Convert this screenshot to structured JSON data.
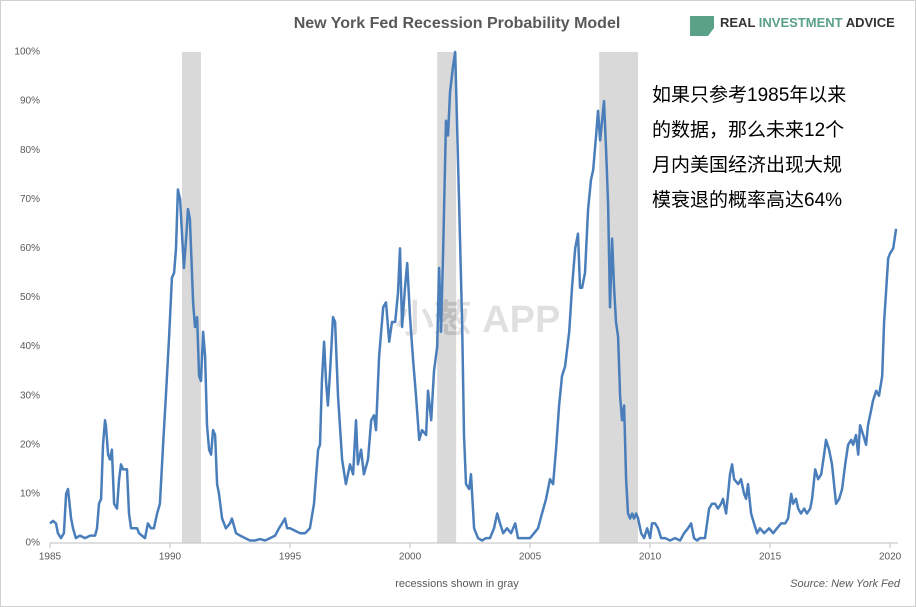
{
  "chart_data": {
    "type": "line",
    "title": "New York Fed Recession Probability Model",
    "logo": [
      "REAL",
      "INVESTMENT",
      "ADVICE"
    ],
    "annotation": [
      "如果只参考1985年以来",
      "的数据，那么未来12个",
      "月内美国经济出现大规",
      "模衰退的概率高达64%"
    ],
    "watermark": "小葱 APP",
    "xlabel": "recessions shown in gray",
    "source": "Source: New York Fed",
    "xlim": [
      1985,
      2020.33
    ],
    "xticks": [
      1985,
      1990,
      1995,
      2000,
      2005,
      2010,
      2015,
      2020
    ],
    "ylim": [
      0,
      100
    ],
    "yticks": [
      {
        "value": 0,
        "label": "0%"
      },
      {
        "value": 10,
        "label": "10%"
      },
      {
        "value": 20,
        "label": "20%"
      },
      {
        "value": 30,
        "label": "30%"
      },
      {
        "value": 40,
        "label": "40%"
      },
      {
        "value": 50,
        "label": "50%"
      },
      {
        "value": 60,
        "label": "60%"
      },
      {
        "value": 70,
        "label": "70%"
      },
      {
        "value": 80,
        "label": "80%"
      },
      {
        "value": 90,
        "label": "90%"
      },
      {
        "value": 100,
        "label": "100%"
      }
    ],
    "grid": false,
    "recession_color": "#d9d9d9",
    "recessions": [
      {
        "start": 1990.5,
        "end": 1991.29
      },
      {
        "start": 2001.13,
        "end": 2001.92
      },
      {
        "start": 2007.88,
        "end": 2009.5
      }
    ],
    "x": [
      1985.0,
      1985.13,
      1985.25,
      1985.33,
      1985.46,
      1985.58,
      1985.67,
      1985.75,
      1985.88,
      1985.96,
      1986.08,
      1986.25,
      1986.46,
      1986.67,
      1986.88,
      1986.96,
      1987.04,
      1987.13,
      1987.21,
      1987.29,
      1987.33,
      1987.42,
      1987.5,
      1987.58,
      1987.67,
      1987.79,
      1987.88,
      1987.96,
      1988.04,
      1988.21,
      1988.29,
      1988.38,
      1988.5,
      1988.63,
      1988.71,
      1988.83,
      1988.96,
      1989.08,
      1989.21,
      1989.33,
      1989.46,
      1989.58,
      1989.71,
      1989.83,
      1989.96,
      1990.08,
      1990.17,
      1990.25,
      1990.33,
      1990.42,
      1990.5,
      1990.58,
      1990.67,
      1990.75,
      1990.83,
      1990.96,
      1991.04,
      1991.13,
      1991.21,
      1991.29,
      1991.38,
      1991.46,
      1991.54,
      1991.63,
      1991.71,
      1991.79,
      1991.88,
      1991.96,
      1992.04,
      1992.17,
      1992.33,
      1992.5,
      1992.58,
      1992.75,
      1992.92,
      1993.13,
      1993.33,
      1993.54,
      1993.75,
      1993.96,
      1994.17,
      1994.38,
      1994.54,
      1994.67,
      1994.79,
      1994.88,
      1995.0,
      1995.42,
      1995.63,
      1995.83,
      1996.0,
      1996.17,
      1996.25,
      1996.33,
      1996.42,
      1996.5,
      1996.58,
      1996.67,
      1996.79,
      1996.88,
      1997.0,
      1997.17,
      1997.33,
      1997.5,
      1997.63,
      1997.75,
      1997.83,
      1997.96,
      1998.08,
      1998.25,
      1998.38,
      1998.5,
      1998.58,
      1998.71,
      1998.88,
      1999.0,
      1999.13,
      1999.25,
      1999.38,
      1999.5,
      1999.58,
      1999.67,
      1999.79,
      1999.88,
      2000.0,
      2000.13,
      2000.25,
      2000.38,
      2000.5,
      2000.67,
      2000.75,
      2000.88,
      2001.0,
      2001.13,
      2001.21,
      2001.29,
      2001.38,
      2001.5,
      2001.58,
      2001.67,
      2001.79,
      2001.88,
      2001.96,
      2002.04,
      2002.17,
      2002.25,
      2002.33,
      2002.46,
      2002.54,
      2002.67,
      2002.83,
      2003.0,
      2003.17,
      2003.33,
      2003.5,
      2003.63,
      2003.75,
      2003.88,
      2004.04,
      2004.21,
      2004.38,
      2004.5,
      2004.67,
      2004.83,
      2005.0,
      2005.17,
      2005.33,
      2005.5,
      2005.67,
      2005.83,
      2005.96,
      2006.08,
      2006.21,
      2006.33,
      2006.46,
      2006.63,
      2006.75,
      2006.88,
      2007.0,
      2007.08,
      2007.17,
      2007.29,
      2007.42,
      2007.54,
      2007.63,
      2007.75,
      2007.83,
      2007.92,
      2008.0,
      2008.08,
      2008.17,
      2008.25,
      2008.33,
      2008.42,
      2008.5,
      2008.58,
      2008.67,
      2008.75,
      2008.83,
      2008.92,
      2009.0,
      2009.08,
      2009.17,
      2009.25,
      2009.33,
      2009.42,
      2009.5,
      2009.63,
      2009.75,
      2009.88,
      2010.0,
      2010.08,
      2010.21,
      2010.33,
      2010.46,
      2010.63,
      2010.83,
      2011.04,
      2011.25,
      2011.42,
      2011.58,
      2011.71,
      2011.83,
      2011.96,
      2012.08,
      2012.29,
      2012.46,
      2012.58,
      2012.71,
      2012.83,
      2012.96,
      2013.04,
      2013.17,
      2013.25,
      2013.33,
      2013.42,
      2013.5,
      2013.67,
      2013.79,
      2013.92,
      2014.0,
      2014.08,
      2014.21,
      2014.33,
      2014.46,
      2014.58,
      2014.75,
      2014.96,
      2015.13,
      2015.29,
      2015.46,
      2015.63,
      2015.75,
      2015.88,
      2015.96,
      2016.08,
      2016.17,
      2016.29,
      2016.42,
      2016.54,
      2016.67,
      2016.75,
      2016.88,
      2017.0,
      2017.13,
      2017.25,
      2017.33,
      2017.46,
      2017.58,
      2017.75,
      2017.88,
      2018.0,
      2018.13,
      2018.25,
      2018.38,
      2018.46,
      2018.58,
      2018.67,
      2018.75,
      2018.88,
      2019.0,
      2019.08,
      2019.21,
      2019.29,
      2019.42,
      2019.54,
      2019.67,
      2019.75,
      2019.83,
      2019.92,
      2020.0,
      2020.13,
      2020.25
    ],
    "series": [
      {
        "name": "Recession probability",
        "color": "#4a7ebb",
        "values": [
          4,
          4.5,
          4,
          2,
          1,
          2,
          10,
          11,
          5,
          3,
          1,
          1.5,
          1,
          1.5,
          1.5,
          3,
          8,
          9,
          20,
          25,
          24,
          18,
          17,
          19,
          8,
          7,
          13,
          16,
          15,
          15,
          6,
          3,
          3,
          3,
          2,
          1.5,
          1,
          4,
          3,
          3,
          6,
          8,
          20,
          30,
          42,
          54,
          55,
          60,
          72,
          70,
          63,
          56,
          62,
          68,
          66,
          49,
          44,
          46,
          34,
          33,
          43,
          38,
          24,
          19,
          18,
          23,
          22,
          12,
          10,
          5,
          3,
          4,
          5,
          2,
          1.5,
          1,
          0.5,
          0.5,
          0.8,
          0.5,
          1,
          1.5,
          3,
          4,
          5,
          3,
          3,
          2,
          2,
          3,
          8,
          19,
          20,
          33,
          41,
          33,
          28,
          35,
          46,
          45,
          30,
          17,
          12,
          16,
          14,
          25,
          16,
          19,
          14,
          17,
          25,
          26,
          23,
          38,
          48,
          49,
          41,
          45,
          45,
          51,
          60,
          44,
          52,
          57,
          46,
          37,
          30,
          21,
          23,
          22,
          31,
          25,
          35,
          40,
          56,
          43,
          60,
          86,
          83,
          92,
          97,
          100,
          85,
          70,
          45,
          22,
          12,
          11,
          14,
          3,
          1,
          0.5,
          1,
          1,
          3,
          6,
          4,
          2,
          3,
          2,
          4,
          1,
          1,
          1,
          1,
          2,
          3,
          6,
          9,
          13,
          12,
          19,
          28,
          34,
          36,
          43,
          52,
          60,
          63,
          52,
          52,
          55,
          68,
          74,
          76,
          83,
          88,
          82,
          86,
          90,
          80,
          69,
          48,
          62,
          52,
          45,
          42,
          30,
          25,
          28,
          13,
          6,
          5,
          6,
          5,
          6,
          5,
          2,
          1,
          3,
          1,
          4,
          4,
          3,
          1,
          1,
          0.5,
          1,
          0.5,
          2,
          3,
          4,
          1,
          0.5,
          1,
          1,
          7,
          8,
          8,
          7,
          8,
          9,
          6,
          10,
          14,
          16,
          13,
          12,
          13,
          10,
          9,
          12,
          6,
          4,
          2,
          3,
          2,
          3,
          2,
          3,
          4,
          4,
          5,
          10,
          8,
          9,
          7,
          6,
          7,
          6,
          7,
          9,
          15,
          13,
          14,
          18,
          21,
          19,
          16,
          8,
          9,
          11,
          16,
          20,
          21,
          20,
          22,
          18,
          24,
          22,
          20,
          24,
          27,
          29,
          31,
          30,
          34,
          45,
          51,
          58,
          59,
          60,
          64
        ]
      }
    ]
  }
}
